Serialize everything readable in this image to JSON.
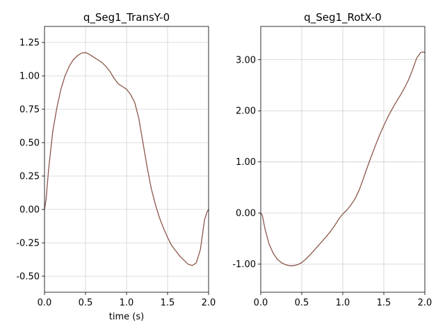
{
  "chart_data": [
    {
      "type": "line",
      "title": "q_Seg1_TransY-0",
      "xlabel": "time (s)",
      "ylabel": "",
      "xlim": [
        0.0,
        2.0
      ],
      "ylim": [
        -0.62,
        1.37
      ],
      "xticks": [
        0.0,
        0.5,
        1.0,
        1.5,
        2.0
      ],
      "xtick_labels": [
        "0.0",
        "0.5",
        "1.0",
        "1.5",
        "2.0"
      ],
      "yticks": [
        1.25,
        1.0,
        0.75,
        0.5,
        0.25,
        0.0,
        -0.25,
        -0.5
      ],
      "ytick_labels": [
        "1.25",
        "1.00",
        "0.75",
        "0.50",
        "0.25",
        "0.00",
        "-0.25",
        "-0.50"
      ],
      "grid": true,
      "color": "#8c564b",
      "series": [
        {
          "x": [
            0.0,
            0.02,
            0.05,
            0.1,
            0.15,
            0.2,
            0.25,
            0.3,
            0.35,
            0.4,
            0.45,
            0.5,
            0.55,
            0.6,
            0.65,
            0.7,
            0.75,
            0.8,
            0.85,
            0.9,
            0.95,
            1.0,
            1.05,
            1.1,
            1.15,
            1.2,
            1.25,
            1.3,
            1.35,
            1.4,
            1.45,
            1.5,
            1.55,
            1.6,
            1.65,
            1.7,
            1.75,
            1.8,
            1.85,
            1.9,
            1.95,
            1.98,
            2.0
          ],
          "values": [
            0.0,
            0.08,
            0.3,
            0.58,
            0.76,
            0.9,
            1.0,
            1.07,
            1.12,
            1.15,
            1.17,
            1.175,
            1.16,
            1.14,
            1.12,
            1.1,
            1.07,
            1.03,
            0.98,
            0.94,
            0.92,
            0.9,
            0.86,
            0.8,
            0.68,
            0.5,
            0.32,
            0.16,
            0.04,
            -0.06,
            -0.14,
            -0.21,
            -0.27,
            -0.31,
            -0.35,
            -0.38,
            -0.41,
            -0.42,
            -0.4,
            -0.3,
            -0.08,
            -0.02,
            0.0
          ]
        }
      ]
    },
    {
      "type": "line",
      "title": "q_Seg1_RotX-0",
      "xlabel": "",
      "ylabel": "",
      "xlim": [
        0.0,
        2.0
      ],
      "ylim": [
        -1.55,
        3.65
      ],
      "xticks": [
        0.0,
        0.5,
        1.0,
        1.5,
        2.0
      ],
      "xtick_labels": [
        "0.0",
        "0.5",
        "1.0",
        "1.5",
        "2.0"
      ],
      "yticks": [
        3.0,
        2.0,
        1.0,
        0.0,
        -1.0
      ],
      "ytick_labels": [
        "3.00",
        "2.00",
        "1.00",
        "0.00",
        "-1.00"
      ],
      "grid": true,
      "color": "#8c564b",
      "series": [
        {
          "x": [
            0.0,
            0.02,
            0.05,
            0.1,
            0.15,
            0.2,
            0.25,
            0.3,
            0.35,
            0.4,
            0.45,
            0.5,
            0.55,
            0.6,
            0.65,
            0.7,
            0.75,
            0.8,
            0.85,
            0.9,
            0.95,
            1.0,
            1.05,
            1.1,
            1.15,
            1.2,
            1.25,
            1.3,
            1.35,
            1.4,
            1.45,
            1.5,
            1.55,
            1.6,
            1.65,
            1.7,
            1.75,
            1.8,
            1.85,
            1.9,
            1.95,
            1.98,
            2.0
          ],
          "values": [
            0.0,
            -0.05,
            -0.3,
            -0.6,
            -0.78,
            -0.9,
            -0.97,
            -1.01,
            -1.03,
            -1.03,
            -1.01,
            -0.97,
            -0.9,
            -0.82,
            -0.73,
            -0.64,
            -0.55,
            -0.46,
            -0.36,
            -0.25,
            -0.12,
            -0.02,
            0.06,
            0.16,
            0.28,
            0.45,
            0.67,
            0.9,
            1.12,
            1.33,
            1.53,
            1.71,
            1.88,
            2.03,
            2.17,
            2.3,
            2.44,
            2.6,
            2.8,
            3.03,
            3.14,
            3.15,
            3.14
          ]
        }
      ]
    }
  ]
}
